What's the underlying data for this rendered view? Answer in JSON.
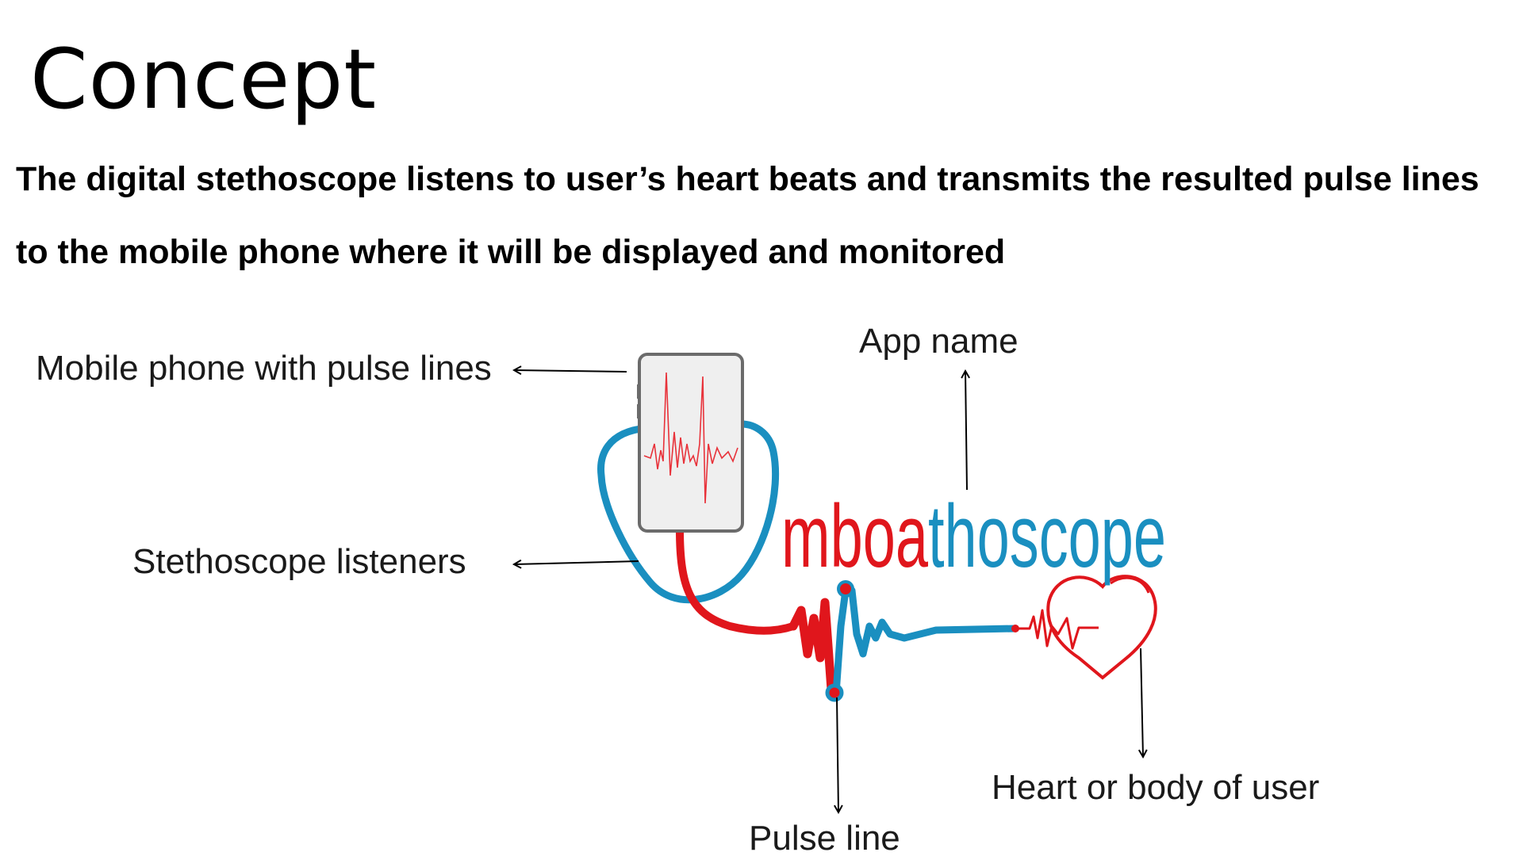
{
  "slide": {
    "title": "Concept",
    "description_line1": "The digital stethoscope listens to user’s heart beats and transmits the resulted pulse lines",
    "description_line2": "to the mobile phone where it will be displayed and monitored"
  },
  "labels": {
    "phone": "Mobile phone with pulse lines",
    "app_name": "App name",
    "listeners": "Stethoscope listeners",
    "heart": "Heart or body of user",
    "pulse": "Pulse line"
  },
  "logo": {
    "part1": "mboa",
    "part2": "thoscope",
    "colors": {
      "red": "#e0161c",
      "blue": "#1a8fc0"
    }
  }
}
